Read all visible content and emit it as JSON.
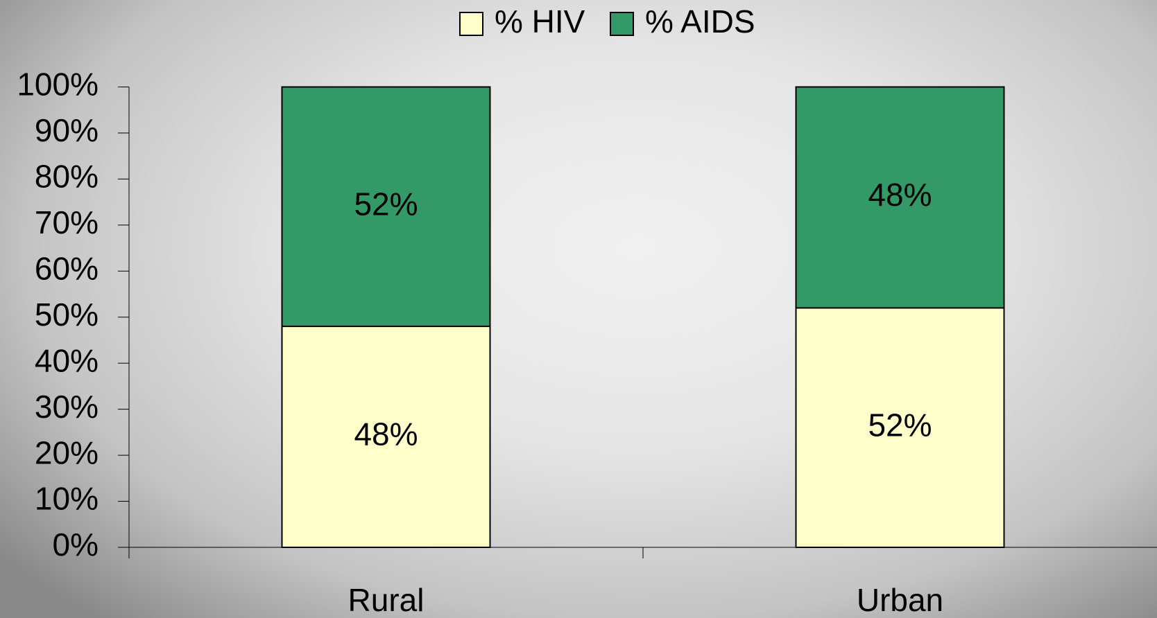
{
  "chart_data": {
    "type": "stacked_bar",
    "categories": [
      "Rural",
      "Urban"
    ],
    "series": [
      {
        "name": "% HIV",
        "color": "#ffffcc",
        "values": [
          48,
          52
        ],
        "value_labels": [
          "48%",
          "52%"
        ]
      },
      {
        "name": "% AIDS",
        "color": "#339966",
        "values": [
          52,
          48
        ],
        "value_labels": [
          "52%",
          "48%"
        ]
      }
    ],
    "ylim": [
      0,
      100
    ],
    "yticks": [
      {
        "value": 0,
        "label": "0%"
      },
      {
        "value": 10,
        "label": "10%"
      },
      {
        "value": 20,
        "label": "20%"
      },
      {
        "value": 30,
        "label": "30%"
      },
      {
        "value": 40,
        "label": "40%"
      },
      {
        "value": 50,
        "label": "50%"
      },
      {
        "value": 60,
        "label": "60%"
      },
      {
        "value": 70,
        "label": "70%"
      },
      {
        "value": 80,
        "label": "80%"
      },
      {
        "value": 90,
        "label": "90%"
      },
      {
        "value": 100,
        "label": "100%"
      }
    ],
    "legend": "top"
  }
}
